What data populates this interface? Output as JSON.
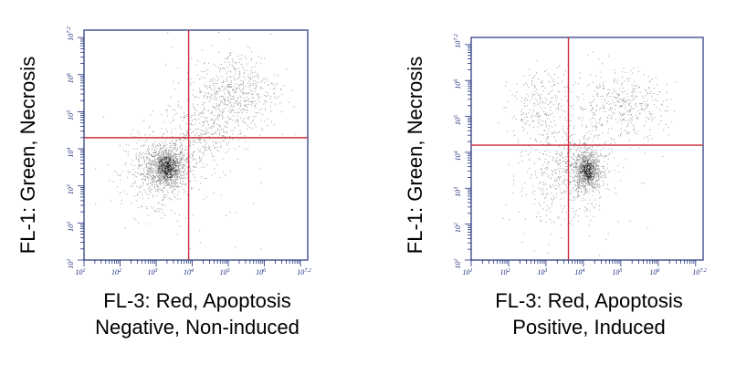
{
  "chart_data": [
    {
      "type": "scatter",
      "xlabel": "FL-3: Red, Apoptosis",
      "ylabel": "FL-1: Green, Necrosis",
      "caption": "Negative, Non-induced",
      "x_scale": "log",
      "y_scale": "log",
      "xlim": [
        1,
        7.2
      ],
      "ylim": [
        1,
        7.2
      ],
      "x_ticks": [
        "10",
        "10",
        "10",
        "10",
        "10",
        "10",
        "10"
      ],
      "x_tick_exponents": [
        "1",
        "2",
        "3",
        "4",
        "5",
        "6",
        "7.2"
      ],
      "y_ticks": [
        "10",
        "10",
        "10",
        "10",
        "10",
        "10",
        "10"
      ],
      "y_tick_exponents": [
        "1",
        "2",
        "3",
        "4",
        "5",
        "6",
        "7.2"
      ],
      "gate_x": 3.9,
      "gate_y": 4.3,
      "clusters": [
        {
          "x": 3.3,
          "y": 3.5,
          "sx": 0.25,
          "sy": 0.28,
          "n": 900
        },
        {
          "x": 3.0,
          "y": 3.4,
          "sx": 0.45,
          "sy": 0.45,
          "n": 500
        },
        {
          "x": 4.0,
          "y": 4.2,
          "sx": 0.45,
          "sy": 0.45,
          "n": 250
        },
        {
          "x": 5.3,
          "y": 5.6,
          "sx": 0.55,
          "sy": 0.55,
          "n": 450
        },
        {
          "x": 4.5,
          "y": 5.0,
          "sx": 0.6,
          "sy": 0.6,
          "n": 250
        },
        {
          "x": 3.5,
          "y": 3.0,
          "sx": 1.0,
          "sy": 1.0,
          "n": 60
        }
      ],
      "colors": {
        "axis": "#1f2f7a",
        "gate": "#cc2d3c",
        "points": "#9a9a9a",
        "core": "#1a1a1a"
      }
    },
    {
      "type": "scatter",
      "xlabel": "FL-3: Red, Apoptosis",
      "ylabel": "FL-1: Green, Necrosis",
      "caption": "Positive, Induced",
      "x_scale": "log",
      "y_scale": "log",
      "xlim": [
        1,
        7.2
      ],
      "ylim": [
        1,
        7.2
      ],
      "x_ticks": [
        "10",
        "10",
        "10",
        "10",
        "10",
        "10",
        "10"
      ],
      "x_tick_exponents": [
        "1",
        "2",
        "3",
        "4",
        "5",
        "6",
        "7.2"
      ],
      "y_ticks": [
        "10",
        "10",
        "10",
        "10",
        "10",
        "10",
        "10"
      ],
      "y_tick_exponents": [
        "1",
        "2",
        "3",
        "4",
        "5",
        "6",
        "7.2"
      ],
      "gate_x": 3.6,
      "gate_y": 4.2,
      "clusters": [
        {
          "x": 4.1,
          "y": 3.5,
          "sx": 0.18,
          "sy": 0.3,
          "n": 700
        },
        {
          "x": 3.9,
          "y": 3.6,
          "sx": 0.4,
          "sy": 0.5,
          "n": 400
        },
        {
          "x": 3.0,
          "y": 5.2,
          "sx": 0.5,
          "sy": 0.55,
          "n": 300
        },
        {
          "x": 5.0,
          "y": 5.3,
          "sx": 0.6,
          "sy": 0.5,
          "n": 400
        },
        {
          "x": 3.2,
          "y": 3.2,
          "sx": 0.5,
          "sy": 0.6,
          "n": 200
        },
        {
          "x": 4.0,
          "y": 3.0,
          "sx": 1.0,
          "sy": 1.0,
          "n": 60
        }
      ],
      "colors": {
        "axis": "#1f2f7a",
        "gate": "#cc2d3c",
        "points": "#9a9a9a",
        "core": "#1a1a1a"
      }
    }
  ]
}
